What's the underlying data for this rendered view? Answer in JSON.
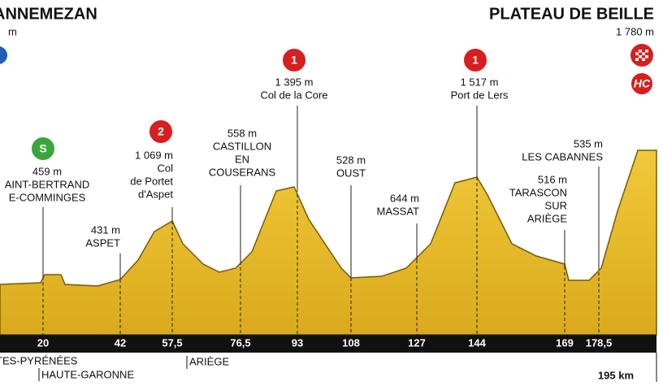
{
  "start": {
    "name": "ANNEMEZAN",
    "altitude": "m"
  },
  "finish": {
    "name": "PLATEAU DE BEILLE",
    "altitude": "1 780 m",
    "badge": "HC"
  },
  "waypoints": [
    {
      "km": "20",
      "altitude": "459 m",
      "name": [
        "AINT-BERTRAND",
        "E-COMMINGES"
      ],
      "badge": "S"
    },
    {
      "km": "42",
      "altitude": "431 m",
      "name": [
        "ASPET"
      ]
    },
    {
      "km": "57,5",
      "altitude": "1 069 m",
      "name": [
        "Col",
        "de Portet",
        "d'Aspet"
      ],
      "badge": "2"
    },
    {
      "km": "76,5",
      "altitude": "558 m",
      "name": [
        "CASTILLON",
        "EN",
        "COUSERANS"
      ]
    },
    {
      "km": "93",
      "altitude": "1 395 m",
      "name": [
        "Col de la Core"
      ],
      "badge": "1"
    },
    {
      "km": "108",
      "altitude": "528 m",
      "name": [
        "OUST"
      ]
    },
    {
      "km": "127",
      "altitude": "644 m",
      "name": [
        "MASSAT"
      ]
    },
    {
      "km": "144",
      "altitude": "1 517 m",
      "name": [
        "Port de Lers"
      ],
      "badge": "1"
    },
    {
      "km": "169",
      "altitude": "516 m",
      "name": [
        "TARASCON",
        "SUR",
        "ARIÈGE"
      ]
    },
    {
      "km": "178,5",
      "altitude": "535 m",
      "name": [
        "LES CABANNES"
      ]
    }
  ],
  "total": "195 km",
  "regions": [
    "TES-PYRÉNÉES",
    "HAUTE-GARONNE",
    "ARIÈGE"
  ]
}
